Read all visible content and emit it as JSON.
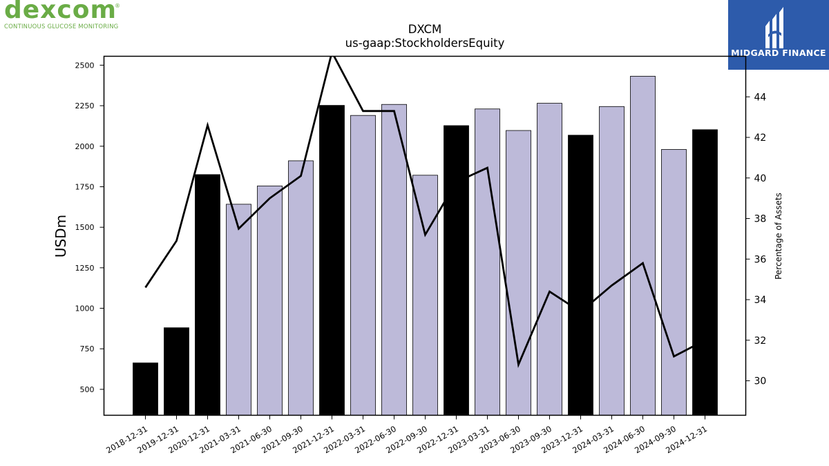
{
  "logo_left": {
    "word": "dexcom",
    "registered": "®",
    "tagline": "CONTINUOUS GLUCOSE MONITORING",
    "color": "#6aac46"
  },
  "logo_right": {
    "name": "MIDGARD FINANCE",
    "background": "#2d5bab"
  },
  "chart_data": {
    "type": "bar",
    "title": "DXCM",
    "subtitle": "us-gaap:StockholdersEquity",
    "ylabel": "USDm",
    "y2label": "Percentage of Assets",
    "ylim": [
      340,
      2555
    ],
    "y2lim": [
      28.3,
      46.0
    ],
    "yticks": [
      500,
      750,
      1000,
      1250,
      1500,
      1750,
      2000,
      2250,
      2500
    ],
    "y2ticks": [
      30,
      32,
      34,
      36,
      38,
      40,
      42,
      44
    ],
    "categories": [
      "2018-12-31",
      "2019-12-31",
      "2020-12-31",
      "2021-03-31",
      "2021-06-30",
      "2021-09-30",
      "2021-12-31",
      "2022-03-31",
      "2022-06-30",
      "2022-09-30",
      "2022-12-31",
      "2023-03-31",
      "2023-06-30",
      "2023-09-30",
      "2023-12-31",
      "2024-03-31",
      "2024-06-30",
      "2024-09-30",
      "2024-12-31"
    ],
    "series": [
      {
        "kind": "bar",
        "values": [
          663,
          880,
          1825,
          1642,
          1755,
          1910,
          2252,
          2190,
          2258,
          1821,
          2127,
          2230,
          2097,
          2265,
          2068,
          2245,
          2432,
          1980,
          2102
        ],
        "colors": [
          "#000000",
          "#000000",
          "#000000",
          "#bdbad9",
          "#bdbad9",
          "#bdbad9",
          "#000000",
          "#bdbad9",
          "#bdbad9",
          "#bdbad9",
          "#000000",
          "#bdbad9",
          "#bdbad9",
          "#bdbad9",
          "#000000",
          "#bdbad9",
          "#bdbad9",
          "#bdbad9",
          "#000000"
        ]
      },
      {
        "kind": "line",
        "axis": "right",
        "color": "#000000",
        "values": [
          34.6,
          36.9,
          42.6,
          37.5,
          39.0,
          40.1,
          46.2,
          43.3,
          43.3,
          37.2,
          39.8,
          40.5,
          30.8,
          34.4,
          33.4,
          34.7,
          35.8,
          31.2,
          32.0
        ]
      }
    ],
    "grid": false
  }
}
